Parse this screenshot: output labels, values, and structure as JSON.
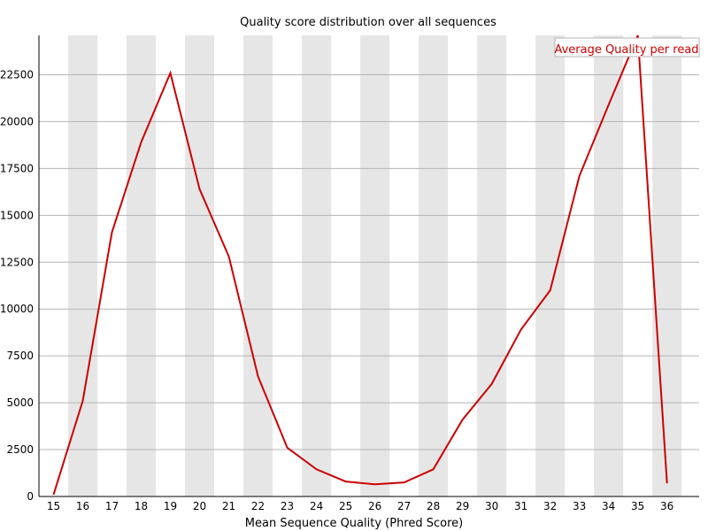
{
  "chart_data": {
    "type": "line",
    "title": "Quality score distribution over all sequences",
    "xlabel": "Mean Sequence Quality (Phred Score)",
    "ylabel": "",
    "categories": [
      "15",
      "16",
      "17",
      "18",
      "19",
      "20",
      "21",
      "22",
      "23",
      "24",
      "25",
      "26",
      "27",
      "28",
      "29",
      "30",
      "31",
      "32",
      "33",
      "34",
      "35",
      "36"
    ],
    "series": [
      {
        "name": "Average Quality per read",
        "color": "#cc0000",
        "values": [
          100,
          5100,
          14100,
          18900,
          22600,
          16400,
          12800,
          6400,
          2600,
          1450,
          800,
          650,
          750,
          1450,
          4100,
          6000,
          8900,
          11000,
          17100,
          20900,
          24600,
          700
        ]
      }
    ],
    "yticks": [
      0,
      2500,
      5000,
      7500,
      10000,
      12500,
      15000,
      17500,
      20000,
      22500
    ],
    "ylim": [
      0,
      24600
    ],
    "grid": true,
    "legend": "top-right"
  },
  "colors": {
    "band": "#e6e6e6",
    "grid": "#b4b4b4",
    "axis": "#000000",
    "legend_border": "#b4b4b4"
  }
}
